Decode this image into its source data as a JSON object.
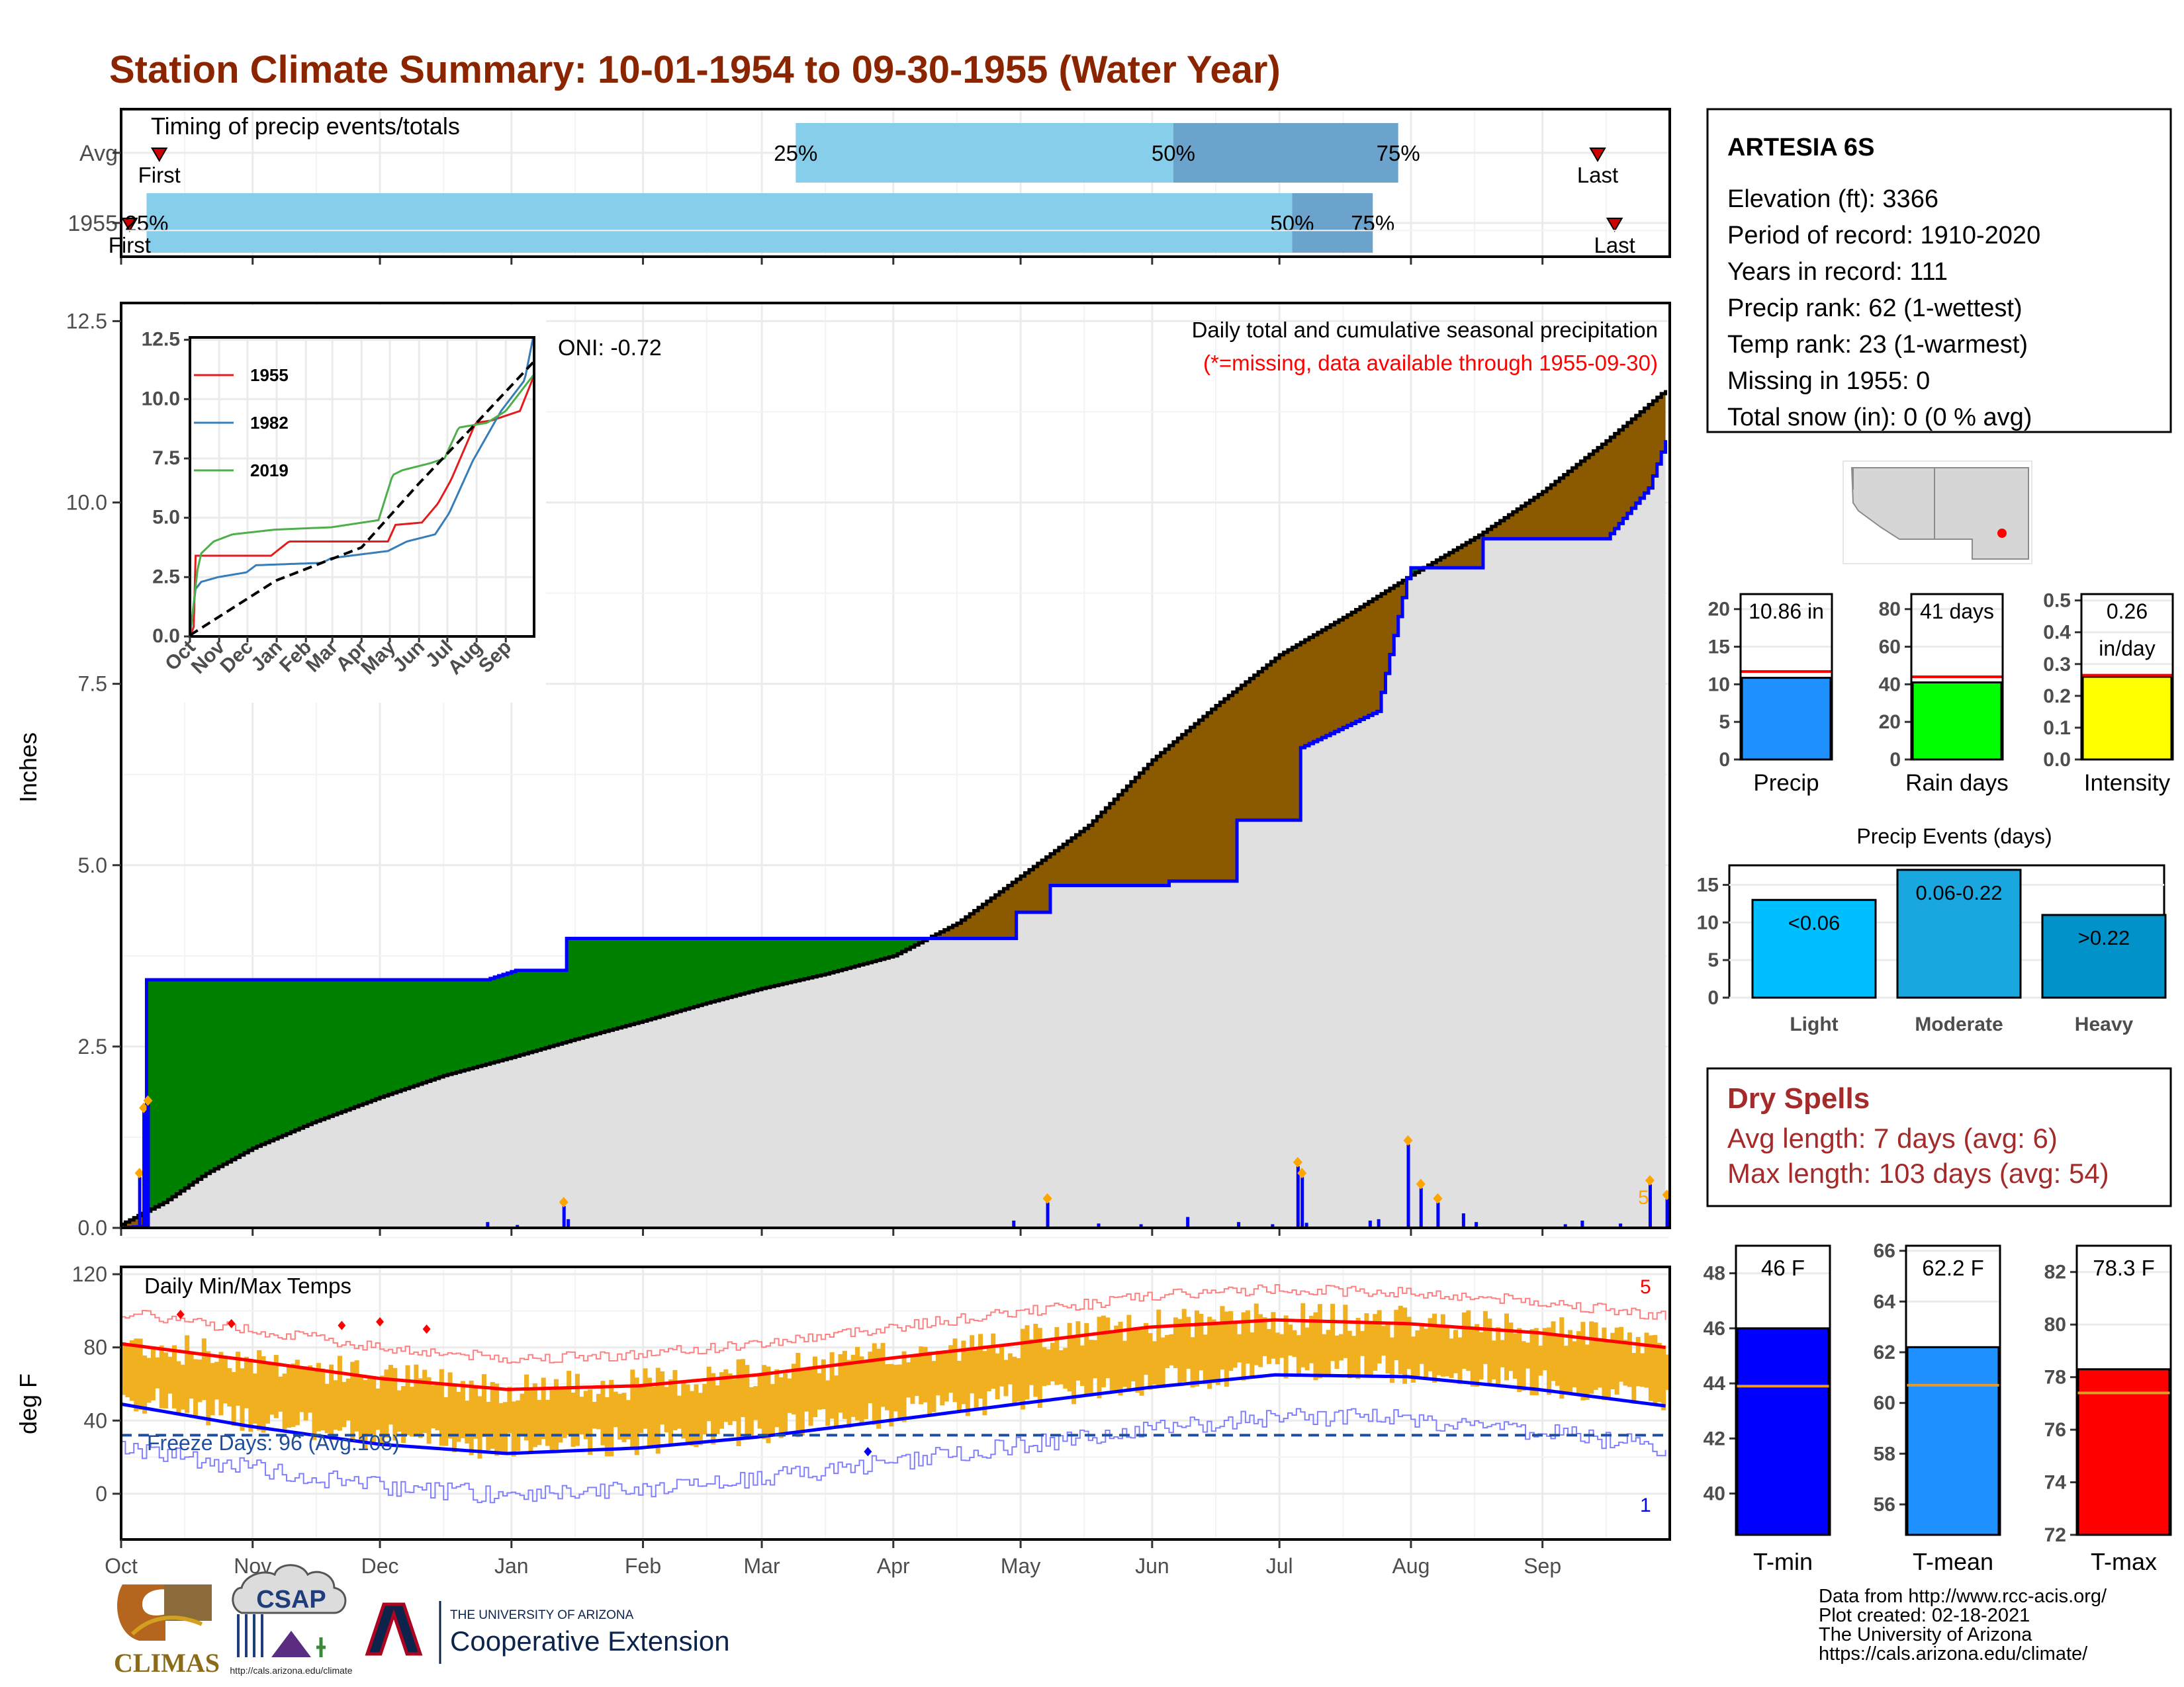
{
  "title": "Station Climate Summary: 10-01-1954 to 09-30-1955 (Water Year)",
  "colors": {
    "title": "#8B2500",
    "precip_obs": "#0000ff",
    "above_avg": "#008000",
    "below_avg": "#8B5A00",
    "normal_fill": "#e0e0e0",
    "tmax": "#ff0000",
    "tmin": "#0000ff",
    "temp_bar": "#f0b020",
    "timing_light": "#87ceeb",
    "timing_dark": "#6ba3cc",
    "dry_spells": "#a52a2a"
  },
  "timing": {
    "title": "Timing of precip events/totals",
    "rows": [
      {
        "label": "Avg",
        "first_label": "First",
        "last_label": "Last",
        "p25": "25%",
        "p50": "50%",
        "p75": "75%",
        "first_day": 9,
        "p25_day": 159,
        "p50_day": 248,
        "p75_day": 301,
        "last_day": 348
      },
      {
        "label": "1955",
        "first_label": "First",
        "last_label": "Last",
        "p25": "25%",
        "p50": "50%",
        "p75": "75%",
        "first_day": 2,
        "p25_day": 6,
        "p50_day": 276,
        "p75_day": 295,
        "last_day": 352
      }
    ]
  },
  "precip_panel": {
    "ylabel": "Inches",
    "oni": "ONI: -0.72",
    "caption": "Daily total and cumulative seasonal precipitation",
    "missing_note": "(*=missing, data available through 1955-09-30)",
    "yticks": [
      "0.0",
      "2.5",
      "5.0",
      "7.5",
      "10.0",
      "12.5"
    ],
    "corner_count": "5"
  },
  "inset": {
    "yticks": [
      "0.0",
      "2.5",
      "5.0",
      "7.5",
      "10.0",
      "12.5"
    ],
    "xticks": [
      "Oct",
      "Nov",
      "Dec",
      "Jan",
      "Feb",
      "Mar",
      "Apr",
      "May",
      "Jun",
      "Jul",
      "Aug",
      "Sep"
    ],
    "legend": [
      {
        "name": "1955",
        "color": "#e41a1c"
      },
      {
        "name": "1982",
        "color": "#377eb8"
      },
      {
        "name": "2019",
        "color": "#4daf4a"
      }
    ]
  },
  "temp_panel": {
    "ylabel": "deg F",
    "title": "Daily Min/Max Temps",
    "freeze": "Freeze Days: 96 (Avg:108)",
    "yticks": [
      "0",
      "40",
      "80",
      "120"
    ],
    "count_top": "5",
    "count_bottom": "1"
  },
  "months": [
    "Oct",
    "Nov",
    "Dec",
    "Jan",
    "Feb",
    "Mar",
    "Apr",
    "May",
    "Jun",
    "Jul",
    "Aug",
    "Sep"
  ],
  "station": {
    "name": "ARTESIA 6S",
    "lines": [
      "Elevation (ft): 3366",
      "Period of record: 1910-2020",
      "Years in record: 111",
      "Precip rank: 62 (1-wettest)",
      "Temp rank: 23 (1-warmest)",
      "Missing in 1955: 0",
      "Total snow (in): 0 (0 % avg)"
    ]
  },
  "summary_bars": [
    {
      "label": "Precip",
      "value_text": "10.86 in",
      "value": 10.86,
      "avg": 11.7,
      "ymax": 22,
      "ticks": [
        "0",
        "5",
        "10",
        "15",
        "20"
      ],
      "color": "#1e90ff"
    },
    {
      "label": "Rain days",
      "value_text": "41 days",
      "value": 41,
      "avg": 44,
      "ymax": 88,
      "ticks": [
        "0",
        "20",
        "40",
        "60",
        "80"
      ],
      "color": "#00ff00"
    },
    {
      "label": "Intensity",
      "value_text": "0.26 in/day",
      "value": 0.26,
      "avg": 0.265,
      "ymax": 0.52,
      "ticks": [
        "0.0",
        "0.1",
        "0.2",
        "0.3",
        "0.4",
        "0.5"
      ],
      "color": "#ffff00"
    }
  ],
  "precip_events": {
    "title": "Precip Events (days)",
    "bars": [
      {
        "label": "Light",
        "value_label": "<0.06",
        "value": 13,
        "color": "#00bfff"
      },
      {
        "label": "Moderate",
        "value_label": "0.06-0.22",
        "value": 17,
        "color": "#1aa7e0"
      },
      {
        "label": "Heavy",
        "value_label": ">0.22",
        "value": 11,
        "color": "#0092c8"
      }
    ],
    "ticks": [
      "0",
      "5",
      "10",
      "15"
    ]
  },
  "dry_spells": {
    "title": "Dry Spells",
    "avg": "Avg length: 7 days (avg: 6)",
    "max": "Max length: 103 days (avg: 54)"
  },
  "temp_bars": [
    {
      "label": "T-min",
      "value_text": "46 F",
      "value": 46,
      "avg": 43.9,
      "ymin": 38.5,
      "ymax": 49,
      "ticks": [
        "40",
        "42",
        "44",
        "46",
        "48"
      ],
      "color": "#0000ff"
    },
    {
      "label": "T-mean",
      "value_text": "62.2 F",
      "value": 62.2,
      "avg": 60.7,
      "ymin": 54.8,
      "ymax": 66.2,
      "ticks": [
        "56",
        "58",
        "60",
        "62",
        "64",
        "66"
      ],
      "color": "#1e90ff"
    },
    {
      "label": "T-max",
      "value_text": "78.3 F",
      "value": 78.3,
      "avg": 77.4,
      "ymin": 72,
      "ymax": 83,
      "ticks": [
        "72",
        "74",
        "76",
        "78",
        "80",
        "82"
      ],
      "color": "#ff0000"
    }
  ],
  "footer": {
    "logo_climas": "CLIMAS",
    "logo_csap": "CSAP",
    "csap_url": "http://cals.arizona.edu/climate",
    "ua_small": "THE UNIVERSITY OF ARIZONA",
    "ua_big": "Cooperative Extension",
    "credits": [
      "Data from http://www.rcc-acis.org/",
      "Plot created: 02-18-2021",
      "The University of Arizona",
      "https://cals.arizona.edu/climate/"
    ]
  },
  "chart_data": [
    {
      "type": "area",
      "title": "Daily total and cumulative seasonal precipitation",
      "ylabel": "Inches",
      "ylim": [
        0,
        12.5
      ],
      "x_unit": "day of water year (0 = Oct 1)",
      "normal_cumulative": {
        "x": [
          0,
          10,
          20,
          31,
          45,
          61,
          76,
          92,
          107,
          123,
          138,
          151,
          166,
          182,
          197,
          212,
          228,
          243,
          258,
          273,
          289,
          304,
          320,
          335,
          350,
          364
        ],
        "y": [
          0.05,
          0.35,
          0.75,
          1.1,
          1.45,
          1.8,
          2.1,
          2.35,
          2.6,
          2.85,
          3.1,
          3.3,
          3.5,
          3.75,
          4.2,
          4.85,
          5.55,
          6.45,
          7.2,
          7.9,
          8.45,
          9.0,
          9.55,
          10.15,
          10.85,
          11.55
        ]
      },
      "observed_cumulative": {
        "x": [
          0,
          5,
          6,
          86,
          93,
          104,
          105,
          210,
          211,
          218,
          219,
          246,
          247,
          262,
          263,
          277,
          278,
          296,
          303,
          304,
          320,
          321,
          350,
          360,
          364
        ],
        "y": [
          0.0,
          0.02,
          3.42,
          3.42,
          3.55,
          3.55,
          3.99,
          3.99,
          4.35,
          4.35,
          4.72,
          4.72,
          4.78,
          4.78,
          5.62,
          5.62,
          6.62,
          7.12,
          8.95,
          9.1,
          9.1,
          9.5,
          9.5,
          10.2,
          10.86
        ]
      },
      "daily_events": {
        "x": [
          4,
          5,
          6,
          86,
          93,
          104,
          105,
          210,
          218,
          230,
          240,
          251,
          263,
          271,
          279,
          277,
          278,
          294,
          296,
          303,
          306,
          310,
          316,
          319,
          340,
          344,
          353,
          360,
          364
        ],
        "y": [
          0.7,
          1.6,
          1.7,
          0.08,
          0.04,
          0.3,
          0.12,
          0.1,
          0.35,
          0.06,
          0.05,
          0.15,
          0.08,
          0.05,
          0.07,
          0.85,
          0.7,
          0.1,
          0.12,
          1.15,
          0.55,
          0.35,
          0.2,
          0.08,
          0.05,
          0.1,
          0.06,
          0.6,
          0.4
        ]
      }
    },
    {
      "type": "line",
      "title": "Daily Min/Max Temps",
      "ylabel": "deg F",
      "ylim": [
        -25,
        120
      ],
      "freeze_threshold": 32,
      "series": [
        {
          "name": "T-max normal",
          "x": [
            0,
            30,
            61,
            91,
            122,
            150,
            181,
            211,
            242,
            272,
            303,
            334,
            364
          ],
          "y": [
            82,
            73,
            63,
            57,
            59,
            65,
            74,
            82,
            91,
            95,
            93,
            88,
            80
          ]
        },
        {
          "name": "T-min normal",
          "x": [
            0,
            30,
            61,
            91,
            122,
            150,
            181,
            211,
            242,
            272,
            303,
            334,
            364
          ],
          "y": [
            49,
            37,
            27,
            22,
            25,
            31,
            40,
            49,
            58,
            65,
            64,
            57,
            48
          ]
        }
      ]
    },
    {
      "type": "line",
      "title": "inset",
      "xlabel": "",
      "ylabel": "",
      "ylim": [
        0,
        12.5
      ],
      "series": [
        {
          "name": "1955",
          "x": [
            0,
            5,
            6,
            86,
            105,
            210,
            218,
            246,
            263,
            277,
            303,
            320,
            350,
            364
          ],
          "y": [
            0,
            0.5,
            3.4,
            3.4,
            4.0,
            4.0,
            4.7,
            4.8,
            5.6,
            6.6,
            9.0,
            9.1,
            9.5,
            10.9
          ]
        },
        {
          "name": "1982",
          "x": [
            0,
            6,
            12,
            30,
            60,
            70,
            140,
            150,
            210,
            230,
            260,
            275,
            300,
            330,
            355,
            364
          ],
          "y": [
            0,
            2.0,
            2.3,
            2.5,
            2.7,
            3.0,
            3.1,
            3.3,
            3.6,
            4.0,
            4.3,
            5.2,
            7.4,
            9.5,
            10.8,
            12.6
          ]
        },
        {
          "name": "2019",
          "x": [
            0,
            8,
            12,
            25,
            45,
            90,
            150,
            200,
            215,
            225,
            255,
            270,
            285,
            315,
            335,
            364
          ],
          "y": [
            0,
            2.8,
            3.5,
            4.0,
            4.3,
            4.5,
            4.6,
            4.9,
            6.8,
            7.0,
            7.3,
            7.5,
            8.8,
            9.0,
            9.5,
            11.0
          ]
        },
        {
          "name": "avg",
          "x": [
            0,
            91,
            182,
            243,
            304,
            364
          ],
          "y": [
            0.05,
            2.35,
            3.75,
            6.45,
            9.0,
            11.55
          ]
        }
      ]
    },
    {
      "type": "bar",
      "title": "Precip Events (days)",
      "categories": [
        "Light",
        "Moderate",
        "Heavy"
      ],
      "values": [
        13,
        17,
        11
      ],
      "ylim": [
        0,
        17.5
      ]
    }
  ]
}
